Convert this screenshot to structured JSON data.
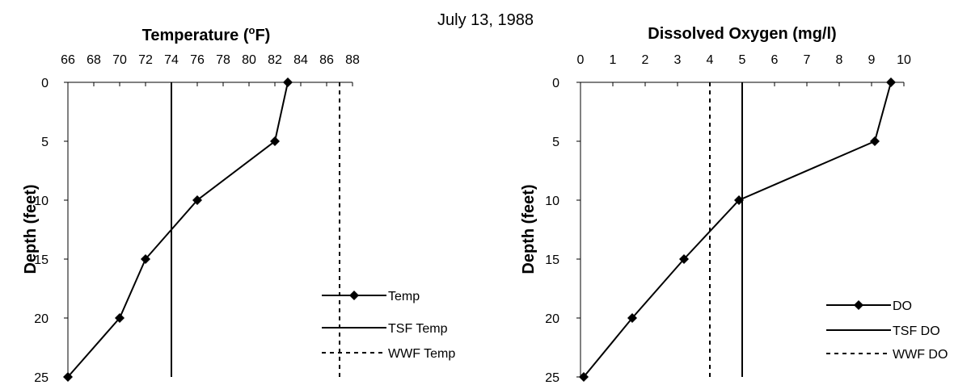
{
  "page_title": "July 13, 1988",
  "chart_data": [
    {
      "type": "line",
      "title": "Temperature (",
      "title_sup": "o",
      "title_end": "F)",
      "ylabel": "Depth (feet)",
      "xlim": [
        66,
        88
      ],
      "x_ticks": [
        66,
        68,
        70,
        72,
        74,
        76,
        78,
        80,
        82,
        84,
        86,
        88
      ],
      "ylim": [
        0,
        25
      ],
      "y_ticks": [
        0,
        5,
        10,
        15,
        20,
        25
      ],
      "x_axis_position": "top",
      "y_axis_inverted": true,
      "series": [
        {
          "name": "Temp",
          "style": "solid-marker",
          "marker": "diamond",
          "points": [
            [
              83,
              0
            ],
            [
              82,
              5
            ],
            [
              76,
              10
            ],
            [
              72,
              15
            ],
            [
              70,
              20
            ],
            [
              66,
              25
            ]
          ]
        },
        {
          "name": "TSF Temp",
          "style": "solid",
          "points": [
            [
              74,
              0
            ],
            [
              74,
              25
            ]
          ]
        },
        {
          "name": "WWF Temp",
          "style": "dashed",
          "points": [
            [
              87,
              0
            ],
            [
              87,
              25
            ]
          ]
        }
      ]
    },
    {
      "type": "line",
      "title": "Dissolved Oxygen (mg/l)",
      "ylabel": "Depth (feet)",
      "xlim": [
        0,
        10
      ],
      "x_ticks": [
        0,
        1,
        2,
        3,
        4,
        5,
        6,
        7,
        8,
        9,
        10
      ],
      "ylim": [
        0,
        25
      ],
      "y_ticks": [
        0,
        5,
        10,
        15,
        20,
        25
      ],
      "x_axis_position": "top",
      "y_axis_inverted": true,
      "series": [
        {
          "name": "DO",
          "style": "solid-marker",
          "marker": "diamond",
          "points": [
            [
              9.6,
              0
            ],
            [
              9.1,
              5
            ],
            [
              4.9,
              10
            ],
            [
              3.2,
              15
            ],
            [
              1.6,
              20
            ],
            [
              0.1,
              25
            ]
          ]
        },
        {
          "name": "TSF DO",
          "style": "solid",
          "points": [
            [
              5,
              0
            ],
            [
              5,
              25
            ]
          ]
        },
        {
          "name": "WWF DO",
          "style": "dashed",
          "points": [
            [
              4,
              0
            ],
            [
              4,
              25
            ]
          ]
        }
      ]
    }
  ]
}
